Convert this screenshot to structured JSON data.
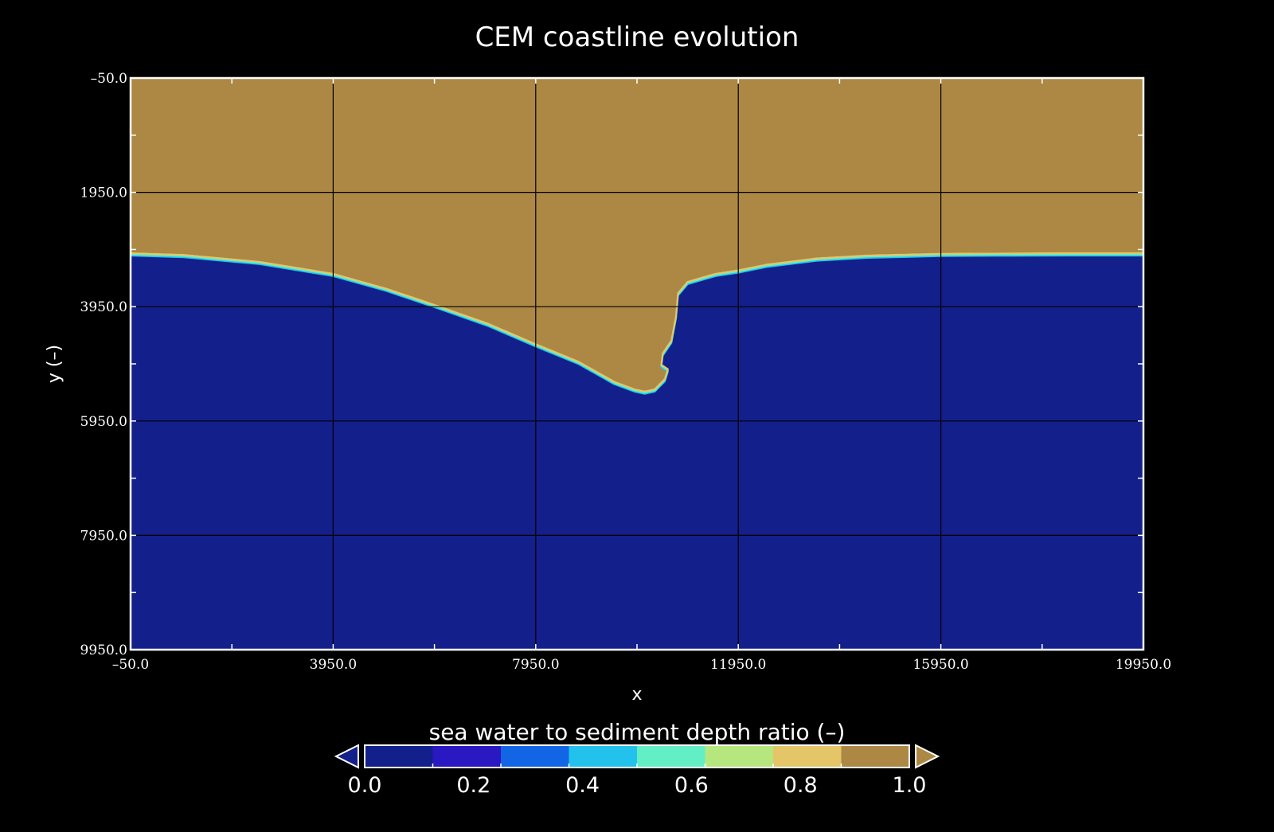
{
  "chart_data": {
    "type": "heatmap",
    "title": "CEM coastline evolution",
    "xlabel": "x",
    "ylabel": "y (–)",
    "xlim": [
      -50.0,
      19950.0
    ],
    "ylim": [
      -50.0,
      9950.0
    ],
    "y_inverted": true,
    "grid": true,
    "x_ticks": [
      "-50.0",
      "3950.0",
      "7950.0",
      "11950.0",
      "15950.0",
      "19950.0"
    ],
    "y_ticks": [
      "-50.0",
      "1950.0",
      "3950.0",
      "5950.0",
      "7950.0",
      "9950.0"
    ],
    "field": "sea water to sediment depth ratio",
    "land_value": 1.0,
    "water_value": 0.0,
    "shoreline": {
      "x": [
        -50,
        1000,
        2500,
        3950,
        5000,
        6000,
        7000,
        7950,
        8800,
        9500,
        9900,
        10100,
        10300,
        10500,
        10560,
        10430,
        10460,
        10630,
        10720,
        10760,
        10950,
        11500,
        11950,
        12500,
        13500,
        14500,
        15950,
        17000,
        18500,
        19950
      ],
      "y": [
        3000,
        3030,
        3150,
        3360,
        3620,
        3920,
        4230,
        4590,
        4900,
        5250,
        5380,
        5420,
        5380,
        5200,
        5030,
        4950,
        4750,
        4530,
        4100,
        3700,
        3500,
        3360,
        3300,
        3200,
        3090,
        3040,
        3010,
        3005,
        3000,
        3000
      ]
    },
    "colorbar": {
      "label": "sea water to sediment  depth ratio (–)",
      "ticks": [
        "0.0",
        "0.2",
        "0.4",
        "0.6",
        "0.8",
        "1.0"
      ],
      "range": [
        0.0,
        1.0
      ],
      "colors": [
        "#131F8A",
        "#2A18C2",
        "#1266E6",
        "#22C2EC",
        "#62EFC6",
        "#B6E77E",
        "#E4C668",
        "#AC8844"
      ],
      "under_color": "#131F8A",
      "over_color": "#AC8844"
    }
  }
}
